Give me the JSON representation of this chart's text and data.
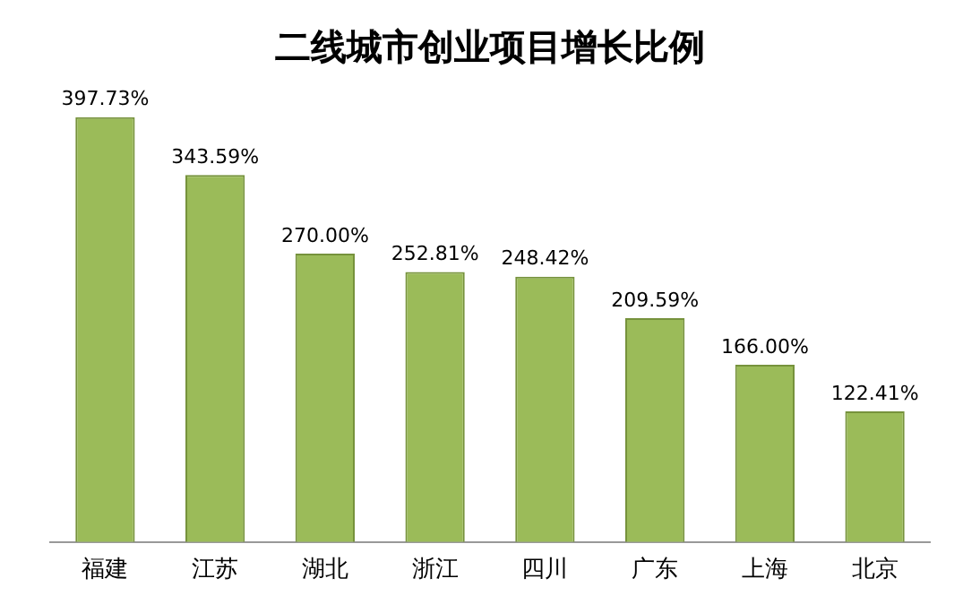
{
  "chart_data": {
    "type": "bar",
    "title": "二线城市创业项目增长比例",
    "categories": [
      "福建",
      "江苏",
      "湖北",
      "浙江",
      "四川",
      "广东",
      "上海",
      "北京"
    ],
    "values": [
      397.73,
      343.59,
      270.0,
      252.81,
      248.42,
      209.59,
      166.0,
      122.41
    ],
    "value_labels": [
      "397.73%",
      "343.59%",
      "270.00%",
      "252.81%",
      "248.42%",
      "209.59%",
      "166.00%",
      "122.41%"
    ],
    "color": "#9bbb59",
    "grid": false,
    "legend": false
  }
}
